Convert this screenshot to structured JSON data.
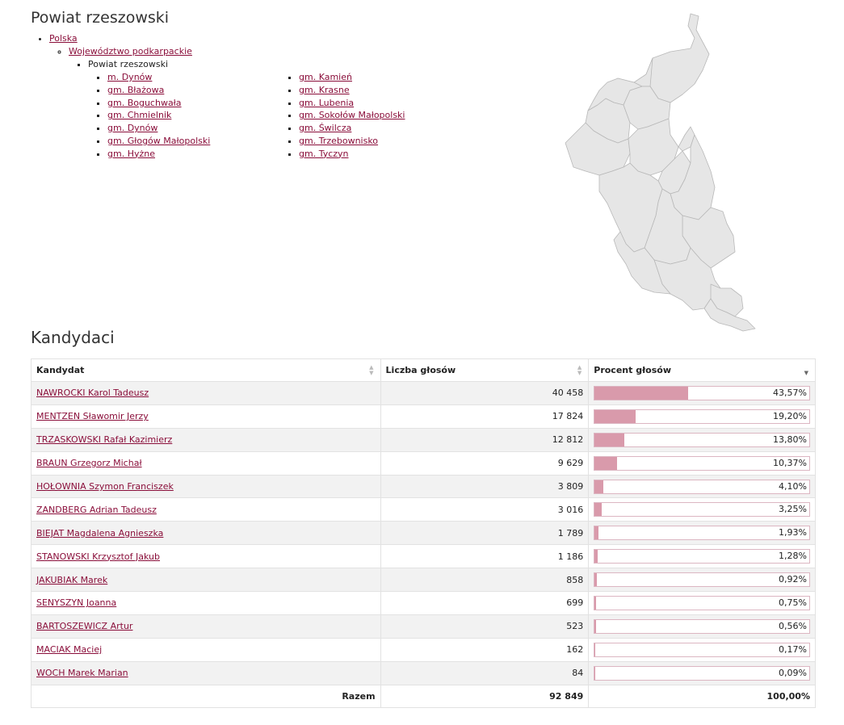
{
  "title": "Powiat rzeszowski",
  "breadcrumb": {
    "level1": "Polska",
    "level2": "Województwo podkarpackie",
    "level3": "Powiat rzeszowski"
  },
  "gminy": {
    "col1": [
      "m. Dynów",
      "gm. Błażowa",
      "gm. Boguchwała",
      "gm. Chmielnik",
      "gm. Dynów",
      "gm. Głogów Małopolski",
      "gm. Hyżne"
    ],
    "col2": [
      "gm. Kamień",
      "gm. Krasne",
      "gm. Lubenia",
      "gm. Sokołów Małopolski",
      "gm. Świlcza",
      "gm. Trzebownisko",
      "gm. Tyczyn"
    ]
  },
  "section_title": "Kandydaci",
  "table": {
    "headers": [
      "Kandydat",
      "Liczba głosów",
      "Procent głosów"
    ],
    "rows": [
      {
        "name": "NAWROCKI Karol Tadeusz",
        "votes": "40 458",
        "pct_label": "43,57%",
        "pct": 43.57
      },
      {
        "name": "MENTZEN Sławomir Jerzy",
        "votes": "17 824",
        "pct_label": "19,20%",
        "pct": 19.2
      },
      {
        "name": "TRZASKOWSKI Rafał Kazimierz",
        "votes": "12 812",
        "pct_label": "13,80%",
        "pct": 13.8
      },
      {
        "name": "BRAUN Grzegorz Michał",
        "votes": "9 629",
        "pct_label": "10,37%",
        "pct": 10.37
      },
      {
        "name": "HOŁOWNIA Szymon Franciszek",
        "votes": "3 809",
        "pct_label": "4,10%",
        "pct": 4.1
      },
      {
        "name": "ZANDBERG Adrian Tadeusz",
        "votes": "3 016",
        "pct_label": "3,25%",
        "pct": 3.25
      },
      {
        "name": "BIEJAT Magdalena Agnieszka",
        "votes": "1 789",
        "pct_label": "1,93%",
        "pct": 1.93
      },
      {
        "name": "STANOWSKI Krzysztof Jakub",
        "votes": "1 186",
        "pct_label": "1,28%",
        "pct": 1.28
      },
      {
        "name": "JAKUBIAK Marek",
        "votes": "858",
        "pct_label": "0,92%",
        "pct": 0.92
      },
      {
        "name": "SENYSZYN Joanna",
        "votes": "699",
        "pct_label": "0,75%",
        "pct": 0.75
      },
      {
        "name": "BARTOSZEWICZ Artur",
        "votes": "523",
        "pct_label": "0,56%",
        "pct": 0.56
      },
      {
        "name": "MACIAK Maciej",
        "votes": "162",
        "pct_label": "0,17%",
        "pct": 0.17
      },
      {
        "name": "WOCH Marek Marian",
        "votes": "84",
        "pct_label": "0,09%",
        "pct": 0.09
      }
    ],
    "total": {
      "label": "Razem",
      "votes": "92 849",
      "pct_label": "100,00%"
    }
  },
  "colors": {
    "link": "#8a0e3a",
    "bar": "#d99aab",
    "map_fill": "#e6e6e6",
    "map_stroke": "#b8b8b8"
  },
  "icons": {
    "sort": "sort-arrows-icon",
    "sort_desc": "sort-desc-icon"
  }
}
